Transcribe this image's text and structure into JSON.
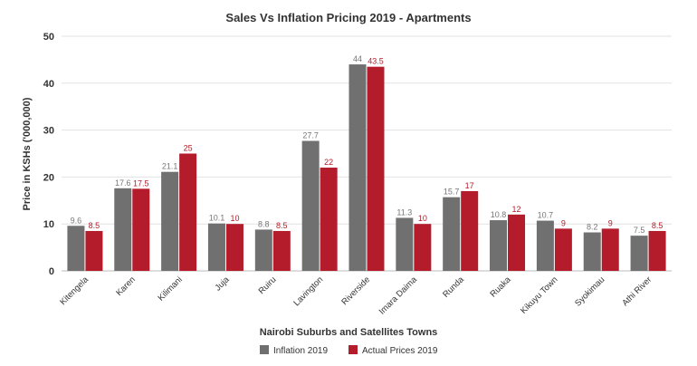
{
  "chart_data": {
    "type": "bar",
    "title": "Sales Vs Inflation Pricing 2019 - Apartments",
    "xlabel": "Nairobi Suburbs and Satellites Towns",
    "ylabel": "Price in KSHs ('000,000)",
    "ylim": [
      0,
      50
    ],
    "yticks": [
      0,
      10,
      20,
      30,
      40,
      50
    ],
    "grid": true,
    "legend": "bottom",
    "categories": [
      "Kitengela",
      "Karen",
      "Kilimani",
      "Juja",
      "Ruiru",
      "Lavington",
      "Riverside",
      "Imara Daima",
      "Runda",
      "Ruaka",
      "Kikuyu Town",
      "Syokimau",
      "Athi River"
    ],
    "series": [
      {
        "name": "Inflation 2019",
        "color": "#707070",
        "values": [
          9.6,
          17.6,
          21.1,
          10.1,
          8.8,
          27.7,
          44,
          11.3,
          15.7,
          10.8,
          10.7,
          8.2,
          7.5
        ]
      },
      {
        "name": "Actual Prices 2019",
        "color": "#b41c2b",
        "values": [
          8.5,
          17.5,
          25,
          10,
          8.5,
          22,
          43.5,
          10,
          17,
          12,
          9,
          9,
          8.5
        ]
      }
    ]
  }
}
